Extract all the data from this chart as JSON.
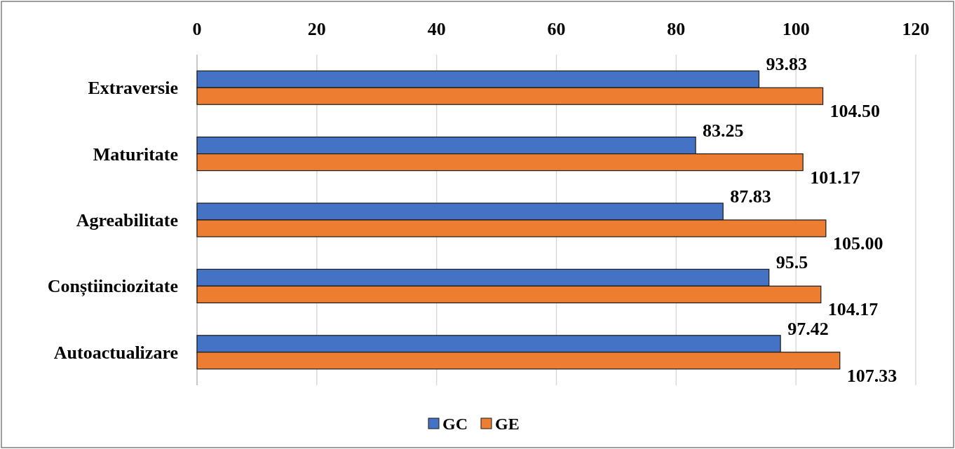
{
  "chart_data": {
    "type": "bar",
    "orientation": "horizontal",
    "categories": [
      "Extraversie",
      "Maturitate",
      "Agreabilitate",
      "Conștiinciozitate",
      "Autoactualizare"
    ],
    "series": [
      {
        "name": "GC",
        "color": "#4472c4",
        "values": [
          93.83,
          83.25,
          87.83,
          95.5,
          97.42
        ],
        "value_labels": [
          "93.83",
          "83.25",
          "87.83",
          "95.5",
          "97.42"
        ]
      },
      {
        "name": "GE",
        "color": "#ed7d31",
        "values": [
          104.5,
          101.17,
          105,
          104.17,
          107.33
        ],
        "value_labels": [
          "104.50",
          "101.17",
          "105.00",
          "104.17",
          "107.33"
        ]
      }
    ],
    "xlim": [
      0,
      120
    ],
    "xticks": [
      0,
      20,
      40,
      60,
      80,
      100,
      120
    ],
    "grid": "x",
    "legend": "bottom"
  }
}
